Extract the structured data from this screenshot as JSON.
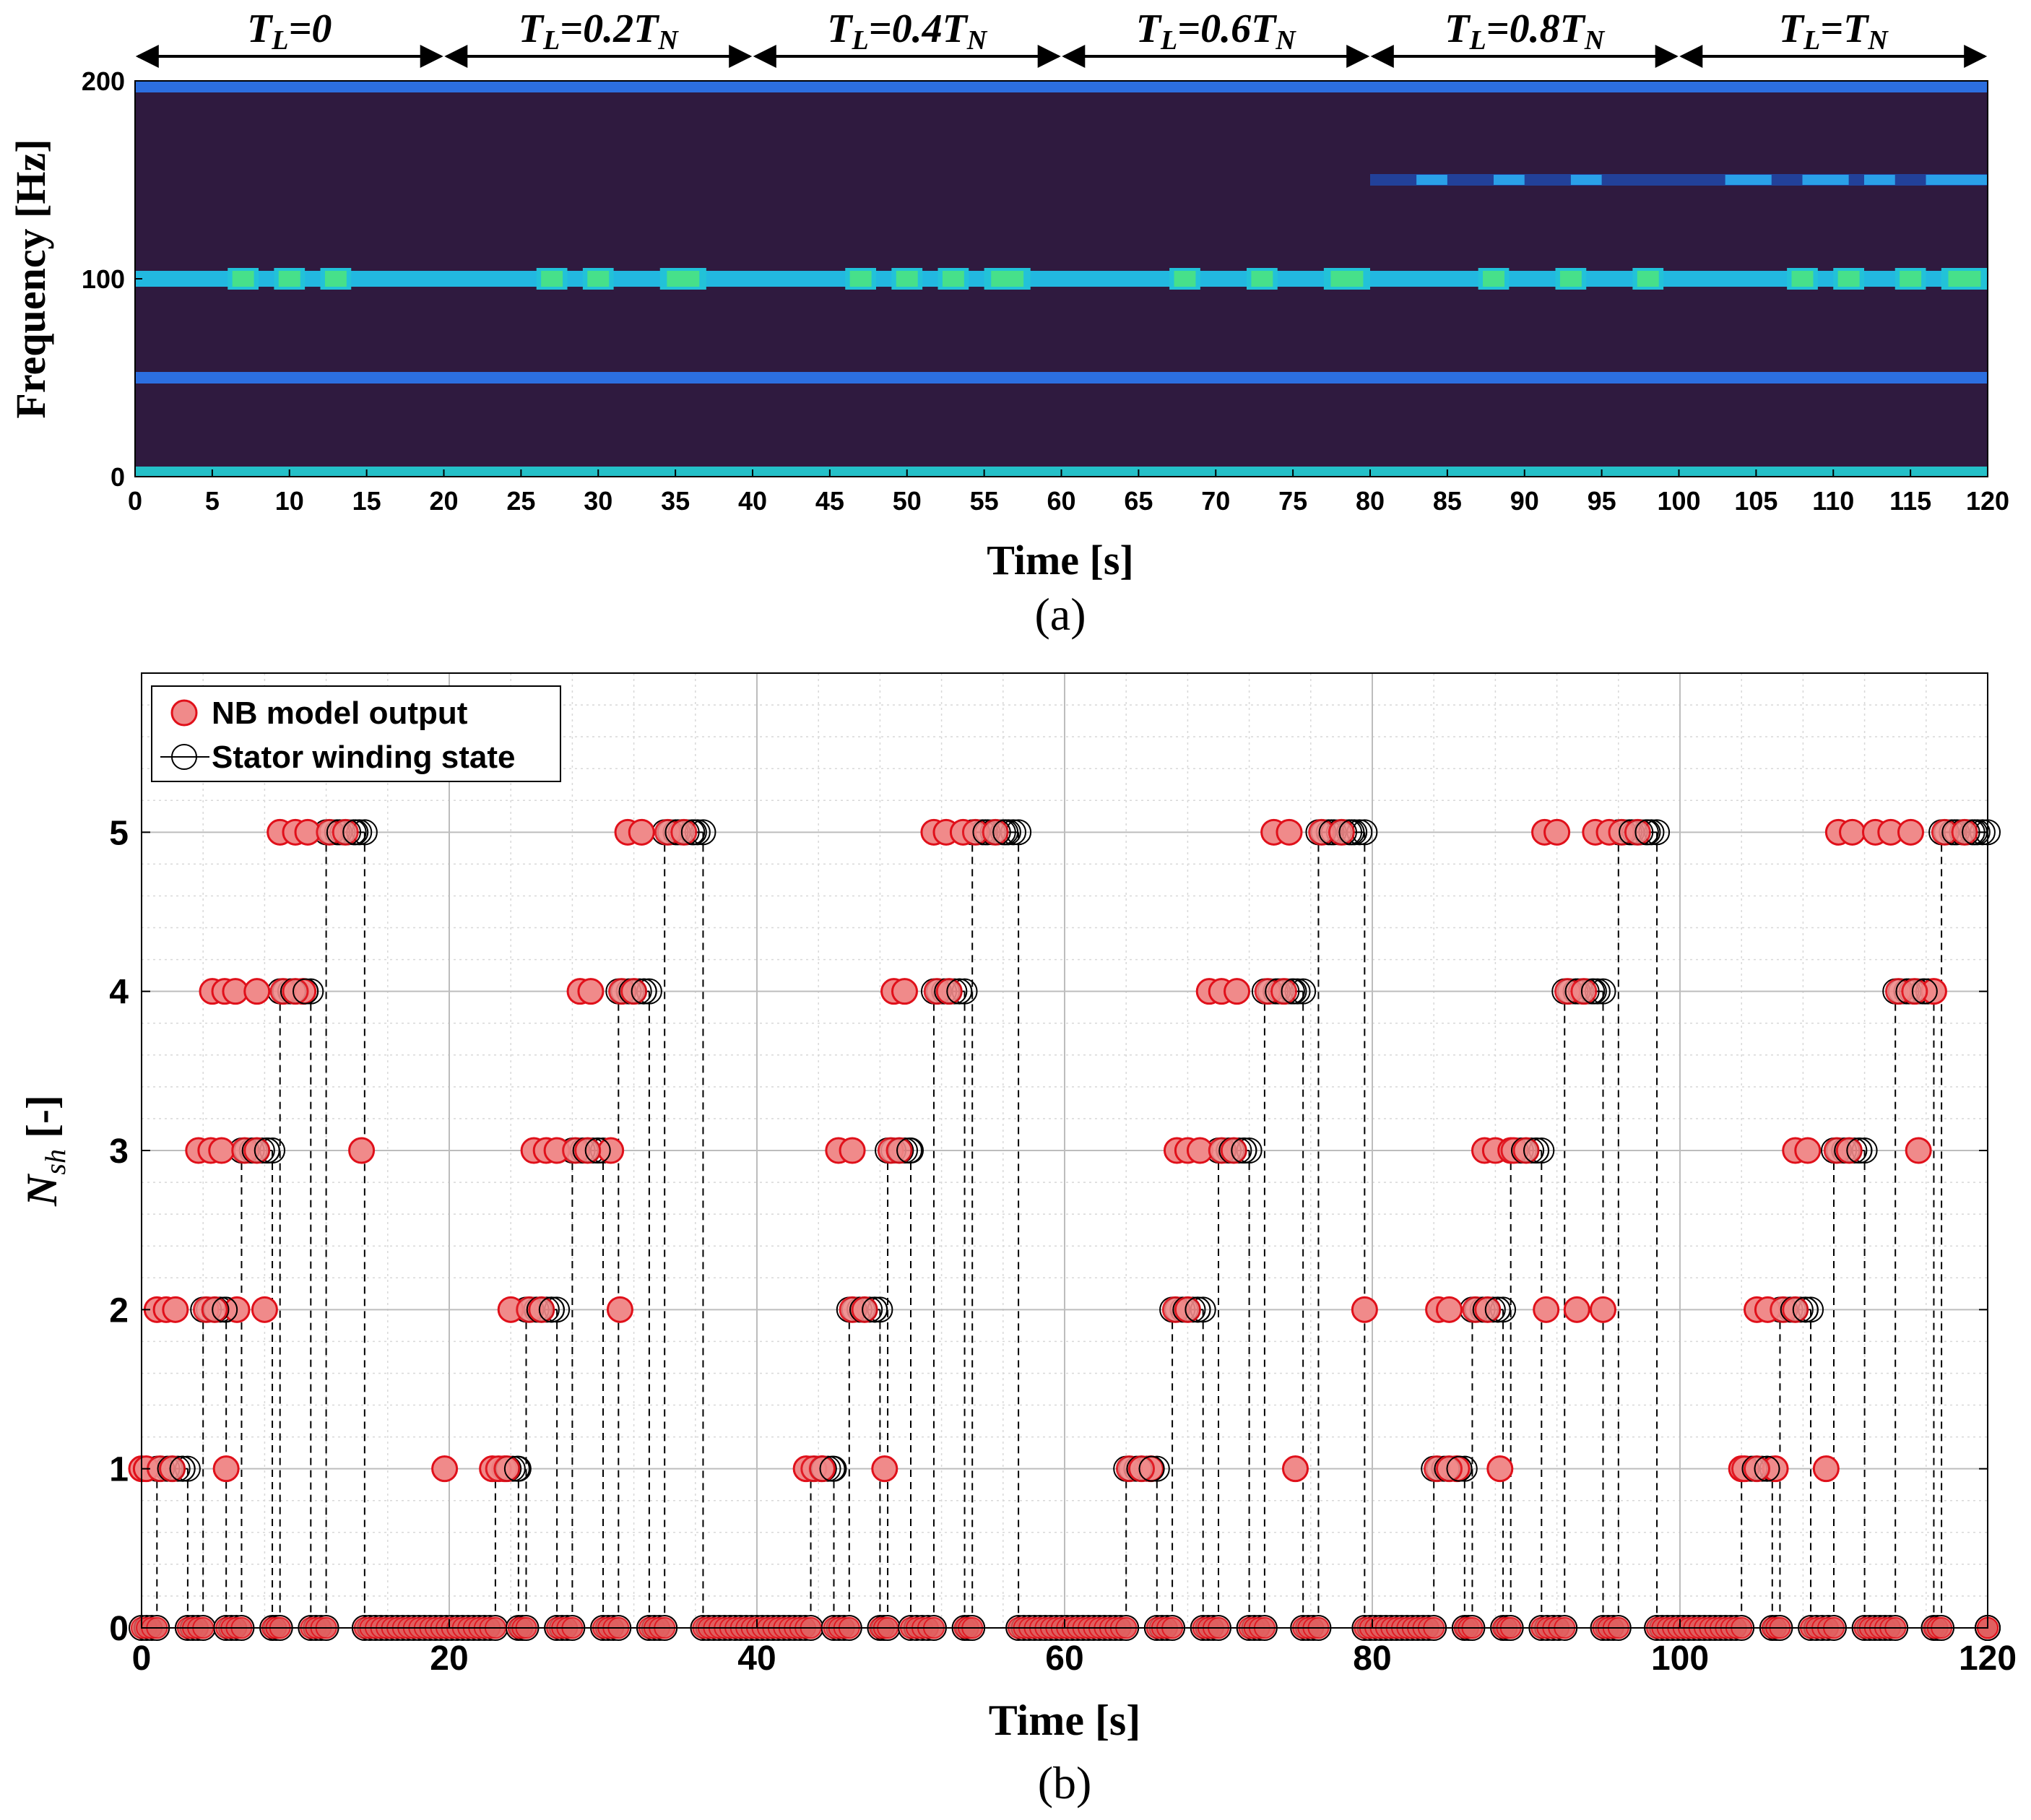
{
  "chart_data": [
    {
      "panel": "(a)",
      "type": "heatmap",
      "subtype": "spectrogram",
      "xlabel": "Time [s]",
      "ylabel": "Frequency [Hz]",
      "xlim": [
        0,
        120
      ],
      "ylim": [
        0,
        200
      ],
      "xticks": [
        0,
        5,
        10,
        15,
        20,
        25,
        30,
        35,
        40,
        45,
        50,
        55,
        60,
        65,
        70,
        75,
        80,
        85,
        90,
        95,
        100,
        105,
        110,
        115,
        120
      ],
      "yticks": [
        0,
        100,
        200
      ],
      "load_segments": [
        {
          "label_main": "T",
          "label_sub": "L",
          "label_rest": "=0",
          "label_sub2": "",
          "start": 0,
          "end": 20
        },
        {
          "label_main": "T",
          "label_sub": "L",
          "label_rest": "=0.2T",
          "label_sub2": "N",
          "start": 20,
          "end": 40
        },
        {
          "label_main": "T",
          "label_sub": "L",
          "label_rest": "=0.4T",
          "label_sub2": "N",
          "start": 40,
          "end": 60
        },
        {
          "label_main": "T",
          "label_sub": "L",
          "label_rest": "=0.6T",
          "label_sub2": "N",
          "start": 60,
          "end": 80
        },
        {
          "label_main": "T",
          "label_sub": "L",
          "label_rest": "=0.8T",
          "label_sub2": "N",
          "start": 80,
          "end": 100
        },
        {
          "label_main": "T",
          "label_sub": "L",
          "label_rest": "=T",
          "label_sub2": "N",
          "start": 100,
          "end": 120
        }
      ],
      "frequency_bands_hz": [
        {
          "f": 0,
          "level": "high"
        },
        {
          "f": 50,
          "level": "medium"
        },
        {
          "f": 100,
          "level": "high"
        },
        {
          "f": 150,
          "level": "low",
          "from_time": 80
        },
        {
          "f": 200,
          "level": "medium"
        }
      ],
      "hot_spots_100hz": [
        [
          6,
          8
        ],
        [
          9,
          11
        ],
        [
          12,
          14
        ],
        [
          26,
          28
        ],
        [
          29,
          31
        ],
        [
          34,
          37
        ],
        [
          46,
          48
        ],
        [
          49,
          51
        ],
        [
          52,
          54
        ],
        [
          55,
          58
        ],
        [
          67,
          69
        ],
        [
          72,
          74
        ],
        [
          77,
          80
        ],
        [
          87,
          89
        ],
        [
          92,
          94
        ],
        [
          97,
          99
        ],
        [
          107,
          109
        ],
        [
          110,
          112
        ],
        [
          114,
          116
        ],
        [
          117,
          120
        ]
      ],
      "colors": {
        "background": "#2f1a3f",
        "mid": "#2c6fe0",
        "high": "#22c2d8",
        "peak": "#47e08a"
      }
    },
    {
      "panel": "(b)",
      "type": "scatter",
      "xlabel": "Time [s]",
      "ylabel_main": "N",
      "ylabel_sub": "sh",
      "ylabel_rest": " [-]",
      "xlim": [
        0,
        120
      ],
      "ylim": [
        0,
        6
      ],
      "xticks": [
        0,
        20,
        40,
        60,
        80,
        100,
        120
      ],
      "yticks": [
        0,
        1,
        2,
        3,
        4,
        5
      ],
      "legend": [
        "NB model output",
        "Stator winding state"
      ],
      "legend_position": "top-left",
      "colors": {
        "model_fill": "#f08a8a",
        "model_edge": "#e0101a",
        "state_edge": "#000000"
      },
      "step_changes": [
        [
          0,
          0
        ],
        [
          1,
          1
        ],
        [
          3,
          0
        ],
        [
          4,
          2
        ],
        [
          5.5,
          0
        ],
        [
          6.5,
          3
        ],
        [
          8.5,
          0
        ],
        [
          9,
          4
        ],
        [
          11,
          0
        ],
        [
          12,
          5
        ],
        [
          14.5,
          0
        ],
        [
          23,
          1
        ],
        [
          24.5,
          0
        ],
        [
          25,
          2
        ],
        [
          27,
          0
        ],
        [
          28,
          3
        ],
        [
          30,
          0
        ],
        [
          31,
          4
        ],
        [
          33,
          0
        ],
        [
          34,
          5
        ],
        [
          36.5,
          0
        ],
        [
          43.5,
          1
        ],
        [
          45,
          0
        ],
        [
          46,
          2
        ],
        [
          48,
          0
        ],
        [
          48.5,
          3
        ],
        [
          50,
          0
        ],
        [
          51.5,
          4
        ],
        [
          53.5,
          0
        ],
        [
          54,
          5
        ],
        [
          57,
          0
        ],
        [
          64,
          1
        ],
        [
          66,
          0
        ],
        [
          67,
          2
        ],
        [
          69,
          0
        ],
        [
          70,
          3
        ],
        [
          72,
          0
        ],
        [
          73,
          4
        ],
        [
          75.5,
          0
        ],
        [
          76.5,
          5
        ],
        [
          79.5,
          0
        ],
        [
          84,
          1
        ],
        [
          86,
          0
        ],
        [
          86.5,
          2
        ],
        [
          88.5,
          0
        ],
        [
          89,
          3
        ],
        [
          91,
          0
        ],
        [
          92.5,
          4
        ],
        [
          95,
          0
        ],
        [
          96,
          5
        ],
        [
          98.5,
          0
        ],
        [
          104,
          1
        ],
        [
          106,
          0
        ],
        [
          106.5,
          2
        ],
        [
          108.5,
          0
        ],
        [
          110,
          3
        ],
        [
          112,
          0
        ],
        [
          114,
          4
        ],
        [
          116.5,
          0
        ],
        [
          117,
          5
        ],
        [
          120,
          0
        ]
      ],
      "model_output_points": [
        [
          0,
          1
        ],
        [
          0.3,
          1
        ],
        [
          1,
          2
        ],
        [
          1.6,
          2
        ],
        [
          2.2,
          2
        ],
        [
          3.7,
          3
        ],
        [
          4.5,
          3
        ],
        [
          5.2,
          3
        ],
        [
          5.5,
          1
        ],
        [
          6.2,
          2
        ],
        [
          8,
          2
        ],
        [
          9,
          5
        ],
        [
          10,
          5
        ],
        [
          10.8,
          5
        ],
        [
          14.3,
          3
        ],
        [
          4.6,
          4
        ],
        [
          5.4,
          4
        ],
        [
          6.1,
          4
        ],
        [
          7.5,
          4
        ],
        [
          10.5,
          4
        ],
        [
          19.7,
          1
        ],
        [
          22.8,
          1
        ],
        [
          23.6,
          1
        ],
        [
          24,
          2
        ],
        [
          25.5,
          3
        ],
        [
          26.3,
          3
        ],
        [
          27,
          3
        ],
        [
          28.5,
          4
        ],
        [
          29.2,
          4
        ],
        [
          30.5,
          3
        ],
        [
          31.1,
          2
        ],
        [
          31.6,
          5
        ],
        [
          32.5,
          5
        ],
        [
          43.2,
          1
        ],
        [
          44.2,
          1
        ],
        [
          45.3,
          3
        ],
        [
          46.2,
          3
        ],
        [
          48.3,
          1
        ],
        [
          48.9,
          4
        ],
        [
          49.6,
          4
        ],
        [
          51.5,
          5
        ],
        [
          52.3,
          5
        ],
        [
          53.4,
          5
        ],
        [
          65.6,
          1
        ],
        [
          67.3,
          3
        ],
        [
          68,
          3
        ],
        [
          68.8,
          3
        ],
        [
          69.4,
          4
        ],
        [
          70.2,
          4
        ],
        [
          71.2,
          4
        ],
        [
          73.6,
          5
        ],
        [
          74.6,
          5
        ],
        [
          75,
          1
        ],
        [
          79.5,
          2
        ],
        [
          84.3,
          2
        ],
        [
          85,
          2
        ],
        [
          85.5,
          1
        ],
        [
          87.3,
          3
        ],
        [
          88,
          3
        ],
        [
          88.3,
          1
        ],
        [
          89,
          3
        ],
        [
          91.2,
          5
        ],
        [
          92,
          5
        ],
        [
          91.3,
          2
        ],
        [
          93.3,
          2
        ],
        [
          95,
          2
        ],
        [
          94.5,
          5
        ],
        [
          95.4,
          5
        ],
        [
          104,
          1
        ],
        [
          105,
          2
        ],
        [
          105.7,
          2
        ],
        [
          106.2,
          1
        ],
        [
          107.5,
          3
        ],
        [
          108.3,
          3
        ],
        [
          109.5,
          1
        ],
        [
          110.3,
          5
        ],
        [
          111.2,
          5
        ],
        [
          112.7,
          5
        ],
        [
          113.7,
          5
        ],
        [
          115,
          5
        ],
        [
          115.5,
          3
        ],
        [
          116.5,
          4
        ]
      ]
    }
  ],
  "captions": {
    "a": "(a)",
    "b": "(b)"
  }
}
